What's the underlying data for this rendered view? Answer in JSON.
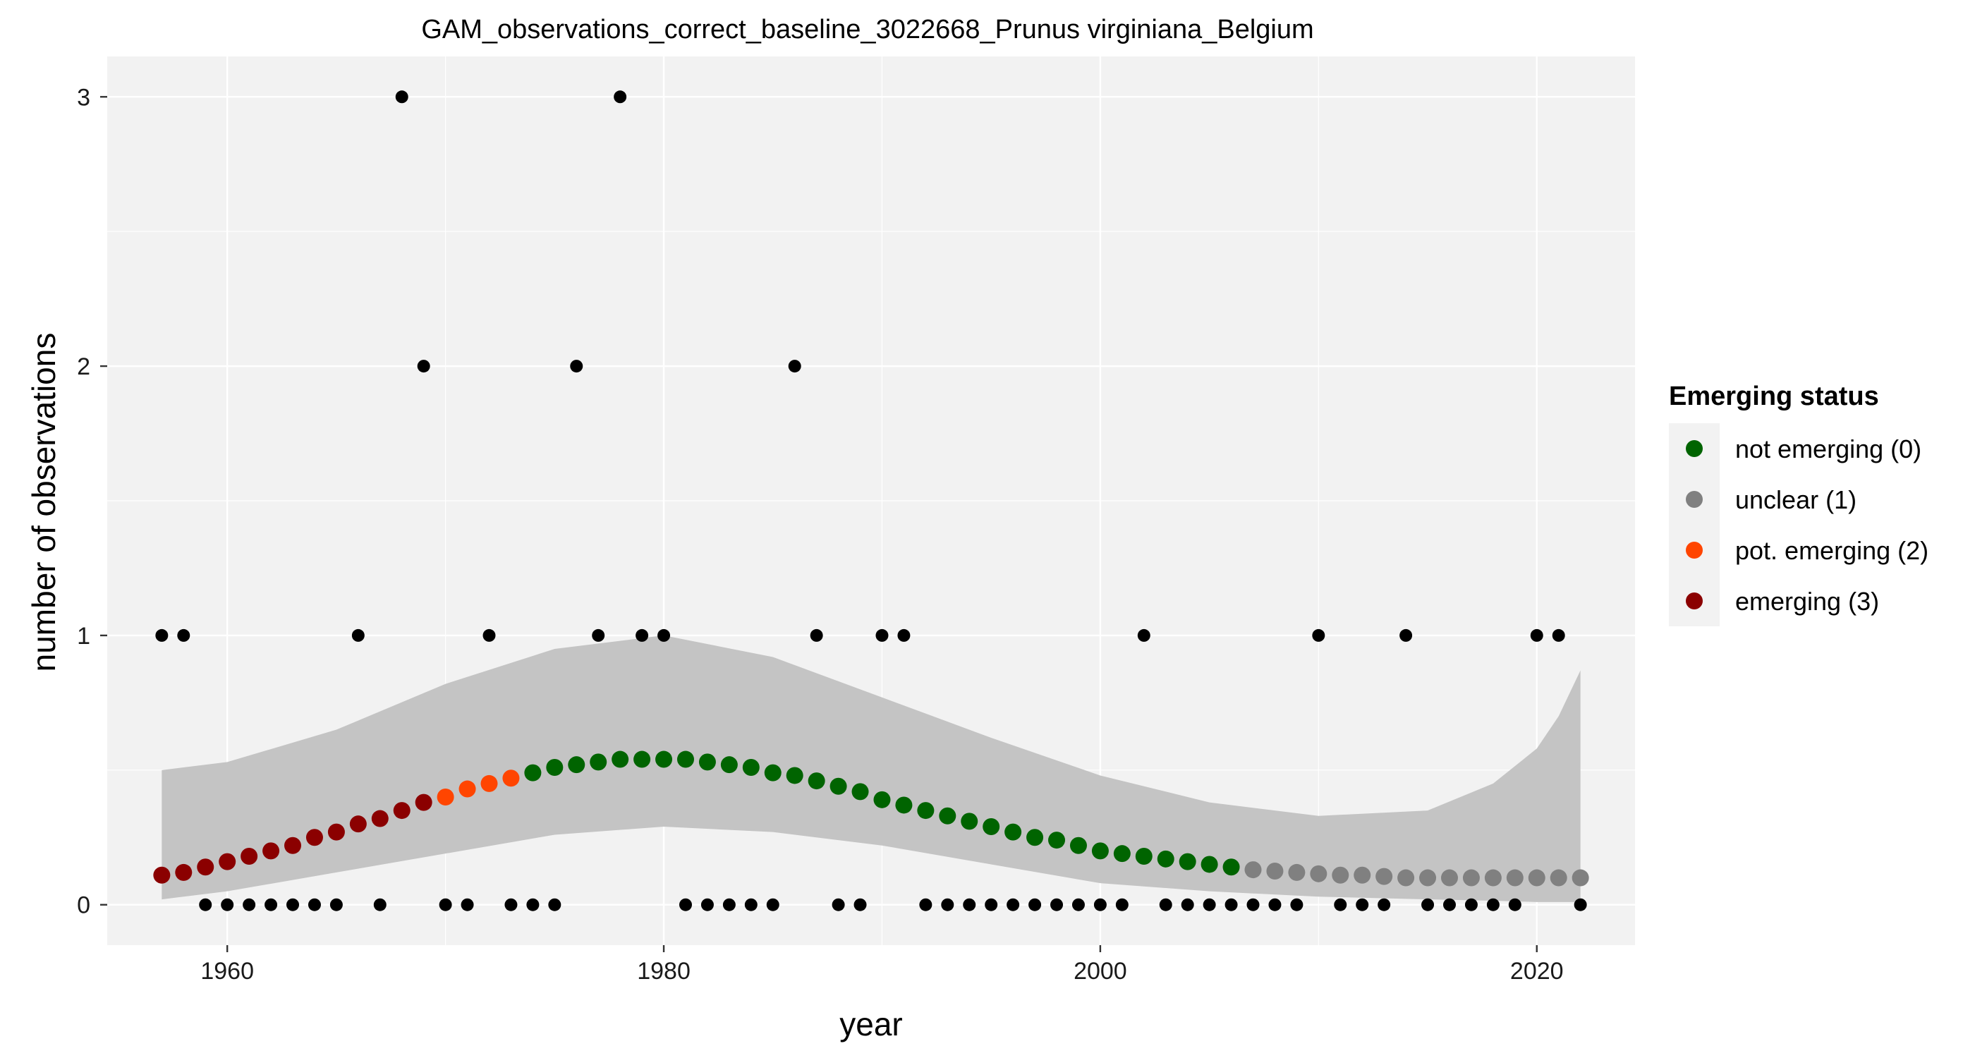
{
  "chart_data": {
    "type": "scatter",
    "title": "GAM_observations_correct_baseline_3022668_Prunus virginiana_Belgium",
    "xlabel": "year",
    "ylabel": "number of observations",
    "xlim": [
      1954.5,
      2024.5
    ],
    "ylim": [
      -0.15,
      3.15
    ],
    "xticks": [
      1960,
      1980,
      2000,
      2020
    ],
    "yticks": [
      0,
      1,
      2,
      3
    ],
    "grid": true,
    "legend": {
      "title": "Emerging status",
      "position": "right",
      "items": [
        {
          "label": "not emerging (0)",
          "color": "#006400"
        },
        {
          "label": "unclear (1)",
          "color": "#808080"
        },
        {
          "label": "pot. emerging (2)",
          "color": "#FF4500"
        },
        {
          "label": "emerging (3)",
          "color": "#8B0000"
        }
      ]
    },
    "observations": {
      "x": [
        1957,
        1958,
        1959,
        1960,
        1961,
        1962,
        1963,
        1964,
        1965,
        1966,
        1967,
        1968,
        1969,
        1970,
        1971,
        1972,
        1973,
        1974,
        1975,
        1976,
        1977,
        1978,
        1979,
        1980,
        1981,
        1982,
        1983,
        1984,
        1985,
        1986,
        1987,
        1988,
        1989,
        1990,
        1991,
        1992,
        1993,
        1994,
        1995,
        1996,
        1997,
        1998,
        1999,
        2000,
        2001,
        2002,
        2003,
        2004,
        2005,
        2006,
        2007,
        2008,
        2009,
        2010,
        2011,
        2012,
        2013,
        2014,
        2015,
        2016,
        2017,
        2018,
        2019,
        2020,
        2021,
        2022
      ],
      "y": [
        1,
        1,
        0,
        0,
        0,
        0,
        0,
        0,
        0,
        1,
        0,
        3,
        2,
        0,
        0,
        1,
        0,
        0,
        0,
        2,
        1,
        3,
        1,
        1,
        0,
        0,
        0,
        0,
        0,
        2,
        1,
        0,
        0,
        1,
        1,
        0,
        0,
        0,
        0,
        0,
        0,
        0,
        0,
        0,
        0,
        1,
        0,
        0,
        0,
        0,
        0,
        0,
        0,
        1,
        0,
        0,
        0,
        1,
        0,
        0,
        0,
        0,
        0,
        1,
        1,
        0
      ]
    },
    "gam_fit": {
      "x": [
        1957,
        1958,
        1959,
        1960,
        1961,
        1962,
        1963,
        1964,
        1965,
        1966,
        1967,
        1968,
        1969,
        1970,
        1971,
        1972,
        1973,
        1974,
        1975,
        1976,
        1977,
        1978,
        1979,
        1980,
        1981,
        1982,
        1983,
        1984,
        1985,
        1986,
        1987,
        1988,
        1989,
        1990,
        1991,
        1992,
        1993,
        1994,
        1995,
        1996,
        1997,
        1998,
        1999,
        2000,
        2001,
        2002,
        2003,
        2004,
        2005,
        2006,
        2007,
        2008,
        2009,
        2010,
        2011,
        2012,
        2013,
        2014,
        2015,
        2016,
        2017,
        2018,
        2019,
        2020,
        2021,
        2022
      ],
      "y": [
        0.11,
        0.12,
        0.14,
        0.16,
        0.18,
        0.2,
        0.22,
        0.25,
        0.27,
        0.3,
        0.32,
        0.35,
        0.38,
        0.4,
        0.43,
        0.45,
        0.47,
        0.49,
        0.51,
        0.52,
        0.53,
        0.54,
        0.54,
        0.54,
        0.54,
        0.53,
        0.52,
        0.51,
        0.49,
        0.48,
        0.46,
        0.44,
        0.42,
        0.39,
        0.37,
        0.35,
        0.33,
        0.31,
        0.29,
        0.27,
        0.25,
        0.24,
        0.22,
        0.2,
        0.19,
        0.18,
        0.17,
        0.16,
        0.15,
        0.14,
        0.13,
        0.125,
        0.12,
        0.115,
        0.11,
        0.11,
        0.105,
        0.1,
        0.1,
        0.1,
        0.1,
        0.1,
        0.1,
        0.1,
        0.1,
        0.1
      ],
      "status": [
        "emerging (3)",
        "emerging (3)",
        "emerging (3)",
        "emerging (3)",
        "emerging (3)",
        "emerging (3)",
        "emerging (3)",
        "emerging (3)",
        "emerging (3)",
        "emerging (3)",
        "emerging (3)",
        "emerging (3)",
        "emerging (3)",
        "pot. emerging (2)",
        "pot. emerging (2)",
        "pot. emerging (2)",
        "pot. emerging (2)",
        "not emerging (0)",
        "not emerging (0)",
        "not emerging (0)",
        "not emerging (0)",
        "not emerging (0)",
        "not emerging (0)",
        "not emerging (0)",
        "not emerging (0)",
        "not emerging (0)",
        "not emerging (0)",
        "not emerging (0)",
        "not emerging (0)",
        "not emerging (0)",
        "not emerging (0)",
        "not emerging (0)",
        "not emerging (0)",
        "not emerging (0)",
        "not emerging (0)",
        "not emerging (0)",
        "not emerging (0)",
        "not emerging (0)",
        "not emerging (0)",
        "not emerging (0)",
        "not emerging (0)",
        "not emerging (0)",
        "not emerging (0)",
        "not emerging (0)",
        "not emerging (0)",
        "not emerging (0)",
        "not emerging (0)",
        "not emerging (0)",
        "not emerging (0)",
        "not emerging (0)",
        "unclear (1)",
        "unclear (1)",
        "unclear (1)",
        "unclear (1)",
        "unclear (1)",
        "unclear (1)",
        "unclear (1)",
        "unclear (1)",
        "unclear (1)",
        "unclear (1)",
        "unclear (1)",
        "unclear (1)",
        "unclear (1)",
        "unclear (1)",
        "unclear (1)",
        "unclear (1)"
      ]
    },
    "confidence_band": {
      "x": [
        1957,
        1960,
        1965,
        1970,
        1975,
        1980,
        1985,
        1990,
        1995,
        2000,
        2005,
        2010,
        2015,
        2018,
        2020,
        2021,
        2022
      ],
      "lower": [
        0.02,
        0.05,
        0.12,
        0.19,
        0.26,
        0.29,
        0.27,
        0.22,
        0.15,
        0.08,
        0.05,
        0.03,
        0.02,
        0.015,
        0.01,
        0.01,
        0.01
      ],
      "upper": [
        0.5,
        0.53,
        0.65,
        0.82,
        0.95,
        1.0,
        0.92,
        0.77,
        0.62,
        0.48,
        0.38,
        0.33,
        0.35,
        0.45,
        0.58,
        0.7,
        0.87
      ]
    }
  },
  "colors": {
    "panel_background": "#F2F2F2",
    "grid_major": "#FFFFFF",
    "observation_point": "#000000",
    "ribbon": "#C4C4C4"
  }
}
